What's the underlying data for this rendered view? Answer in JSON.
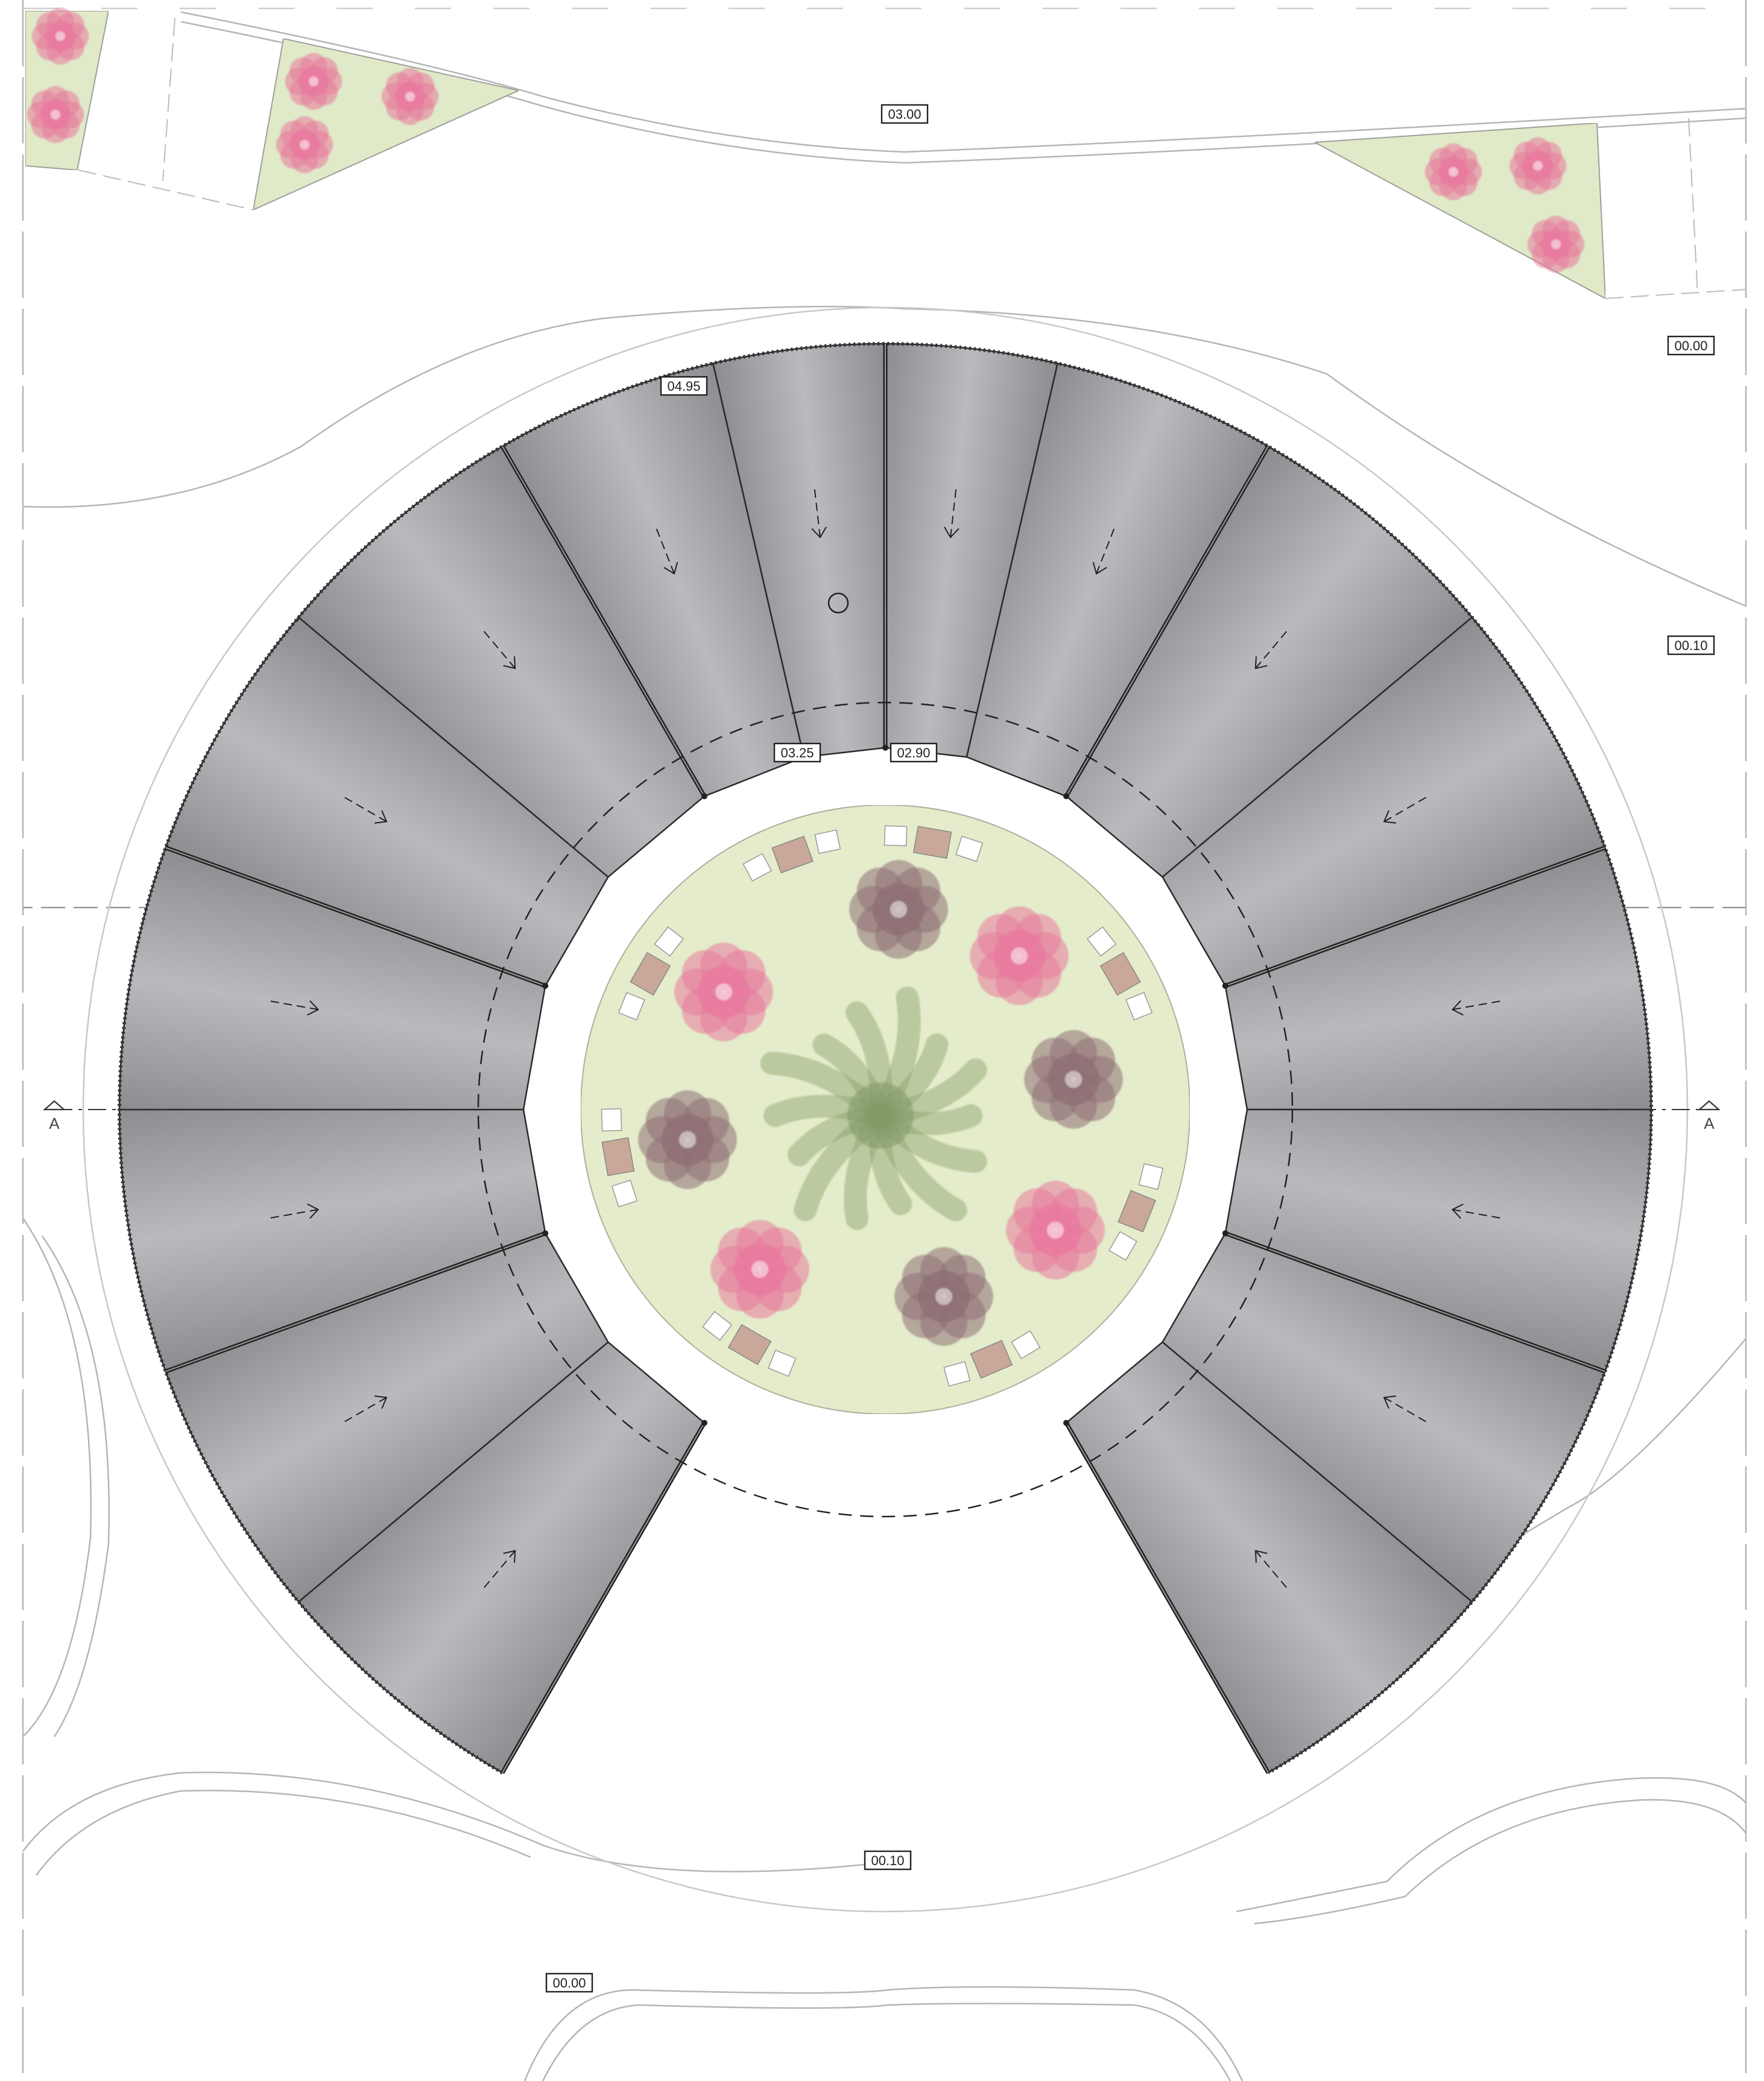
{
  "levels": {
    "top_road": "03.00",
    "right_upper": "00.00",
    "right_middle": "00.10",
    "roof_peak": "04.95",
    "inner_left": "03.25",
    "inner_right": "02.90",
    "bottom_plaza": "00.10",
    "bottom_left": "00.00"
  },
  "section_marker": {
    "left_label": "A",
    "right_label": "A"
  },
  "colors": {
    "roof_dark": "#8c8d90",
    "roof_light": "#b9babd",
    "lawn": "#e3ebc8",
    "flower_pink": "#e87a9d",
    "shrub": "#8e6f74",
    "bench_wood": "#c9a89a",
    "line": "#222222",
    "road_line": "#b8b8b8"
  },
  "icons": [
    "section-marker-icon",
    "drain-circle-icon",
    "slope-arrow-icon",
    "tree-icon",
    "shrub-icon",
    "flower-icon",
    "bench-icon"
  ]
}
